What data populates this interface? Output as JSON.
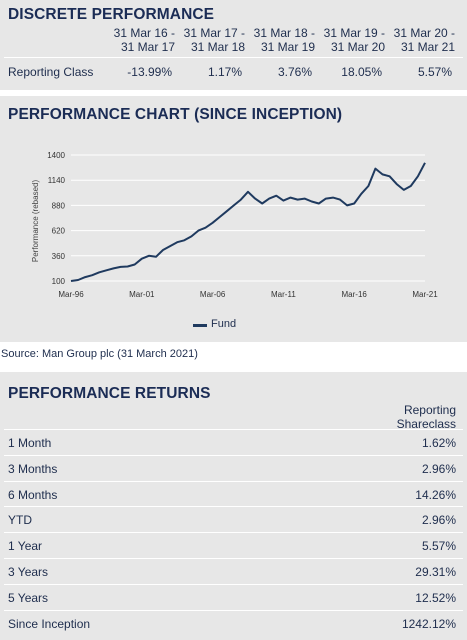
{
  "discrete": {
    "title": "DISCRETE PERFORMANCE",
    "periods": [
      {
        "line1": "31 Mar 16 -",
        "line2": "31 Mar 17"
      },
      {
        "line1": "31 Mar 17 -",
        "line2": "31 Mar 18"
      },
      {
        "line1": "31 Mar 18 -",
        "line2": "31 Mar 19"
      },
      {
        "line1": "31 Mar 19 -",
        "line2": "31 Mar 20"
      },
      {
        "line1": "31 Mar 20 -",
        "line2": "31 Mar 21"
      }
    ],
    "row_label": "Reporting Class",
    "values": [
      "-13.99%",
      "1.17%",
      "3.76%",
      "18.05%",
      "5.57%"
    ]
  },
  "chart_section": {
    "title": "PERFORMANCE CHART (SINCE INCEPTION)"
  },
  "chart_data": {
    "type": "line",
    "ylabel": "Performance (rebased)",
    "xlabel": "",
    "ylim": [
      100,
      1400
    ],
    "yticks": [
      100,
      360,
      620,
      880,
      1140,
      1400
    ],
    "xticks": [
      "Mar-96",
      "Mar-01",
      "Mar-06",
      "Mar-11",
      "Mar-16",
      "Mar-21"
    ],
    "grid": true,
    "legend_position": "bottom-center",
    "series": [
      {
        "name": "Fund",
        "color": "#1f3a5f",
        "x": [
          1996.25,
          1996.75,
          1997.25,
          1997.75,
          1998.25,
          1998.75,
          1999.25,
          1999.75,
          2000.25,
          2000.75,
          2001.25,
          2001.75,
          2002.25,
          2002.75,
          2003.25,
          2003.75,
          2004.25,
          2004.75,
          2005.25,
          2005.75,
          2006.25,
          2006.75,
          2007.25,
          2007.75,
          2008.25,
          2008.75,
          2009.25,
          2009.75,
          2010.25,
          2010.75,
          2011.25,
          2011.75,
          2012.25,
          2012.75,
          2013.25,
          2013.75,
          2014.25,
          2014.75,
          2015.25,
          2015.75,
          2016.25,
          2016.75,
          2017.25,
          2017.75,
          2018.25,
          2018.75,
          2019.25,
          2019.75,
          2020.25,
          2020.75,
          2021.25
        ],
        "y": [
          100,
          110,
          140,
          160,
          190,
          210,
          230,
          245,
          250,
          270,
          330,
          360,
          350,
          420,
          460,
          500,
          520,
          560,
          620,
          650,
          700,
          760,
          820,
          880,
          940,
          1020,
          950,
          900,
          950,
          980,
          930,
          960,
          940,
          950,
          920,
          900,
          950,
          960,
          940,
          880,
          900,
          1000,
          1080,
          1260,
          1200,
          1180,
          1100,
          1040,
          1080,
          1180,
          1320
        ]
      }
    ]
  },
  "source_note": "Source: Man Group plc (31 March 2021)",
  "returns": {
    "title": "PERFORMANCE RETURNS",
    "column_header_line1": "Reporting",
    "column_header_line2": "Shareclass",
    "rows": [
      {
        "label": "1 Month",
        "value": "1.62%"
      },
      {
        "label": "3 Months",
        "value": "2.96%"
      },
      {
        "label": "6 Months",
        "value": "14.26%"
      },
      {
        "label": "YTD",
        "value": "2.96%"
      },
      {
        "label": "1 Year",
        "value": "5.57%"
      },
      {
        "label": "3 Years",
        "value": "29.31%"
      },
      {
        "label": "5 Years",
        "value": "12.52%"
      },
      {
        "label": "Since Inception",
        "value": "1242.12%"
      }
    ]
  },
  "colors": {
    "panel_bg": "#e7e7e7",
    "heading": "#1b2c55",
    "line": "#1f3a5f"
  }
}
